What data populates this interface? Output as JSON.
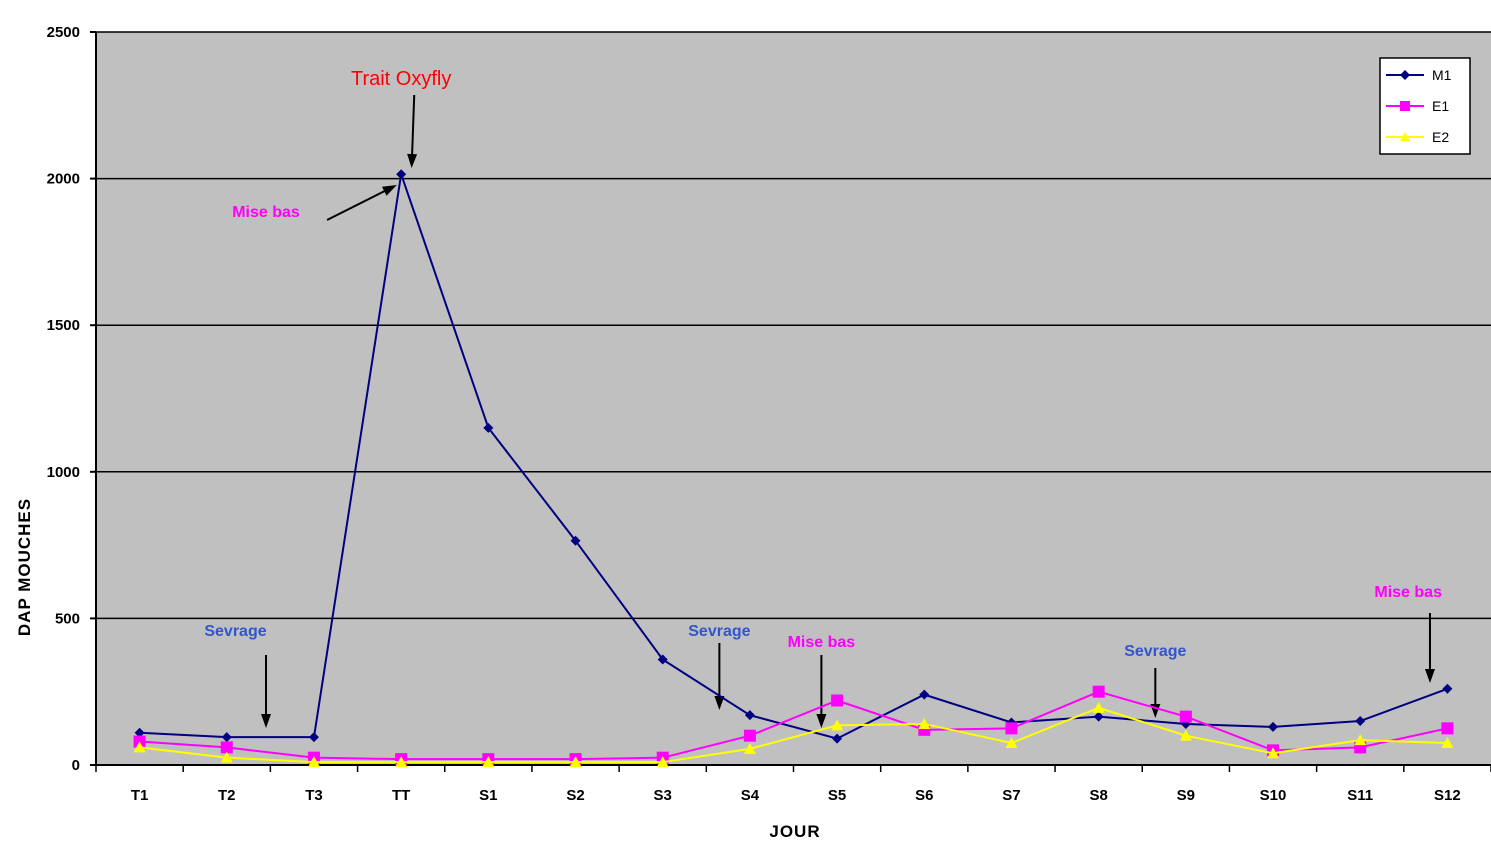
{
  "chart_data": {
    "type": "line",
    "categories": [
      "T1",
      "T2",
      "T3",
      "TT",
      "S1",
      "S2",
      "S3",
      "S4",
      "S5",
      "S6",
      "S7",
      "S8",
      "S9",
      "S10",
      "S11",
      "S12"
    ],
    "series": [
      {
        "name": "M1",
        "color": "#000080",
        "marker": "diamond",
        "values": [
          110,
          95,
          95,
          2015,
          1150,
          765,
          360,
          170,
          90,
          240,
          145,
          165,
          140,
          130,
          150,
          260
        ]
      },
      {
        "name": "E1",
        "color": "#ff00ff",
        "marker": "square",
        "values": [
          80,
          60,
          25,
          20,
          20,
          20,
          25,
          100,
          220,
          120,
          125,
          250,
          165,
          50,
          60,
          125
        ]
      },
      {
        "name": "E2",
        "color": "#ffff00",
        "marker": "triangle",
        "values": [
          60,
          25,
          10,
          10,
          10,
          10,
          10,
          55,
          135,
          140,
          75,
          195,
          100,
          40,
          85,
          75
        ]
      }
    ],
    "xlabel": "JOUR",
    "ylabel": "DAP MOUCHES",
    "ylim": [
      0,
      2500
    ],
    "yticks": [
      "0",
      "500",
      "1000",
      "1500",
      "2000",
      "2500"
    ],
    "grid": true,
    "legend_position": "top-right",
    "plot_background": "#c0c0c0",
    "annotations": [
      {
        "text": "Trait Oxyfly",
        "color": "#ff0000",
        "category": "TT",
        "kind": "label-with-arrow"
      },
      {
        "text": "Mise bas",
        "color": "#ff00ff",
        "category": "TT",
        "kind": "label-with-arrow"
      },
      {
        "text": "Sevrage",
        "color": "#3355cc",
        "category": "T3",
        "kind": "label-with-arrow"
      },
      {
        "text": "Sevrage",
        "color": "#3355cc",
        "category": "S4",
        "kind": "label-with-arrow"
      },
      {
        "text": "Mise bas",
        "color": "#ff00ff",
        "category": "S5",
        "kind": "label-with-arrow"
      },
      {
        "text": "Sevrage",
        "color": "#3355cc",
        "category": "S9",
        "kind": "label-with-arrow"
      },
      {
        "text": "Mise bas",
        "color": "#ff00ff",
        "category": "S12",
        "kind": "label-with-arrow"
      }
    ]
  }
}
